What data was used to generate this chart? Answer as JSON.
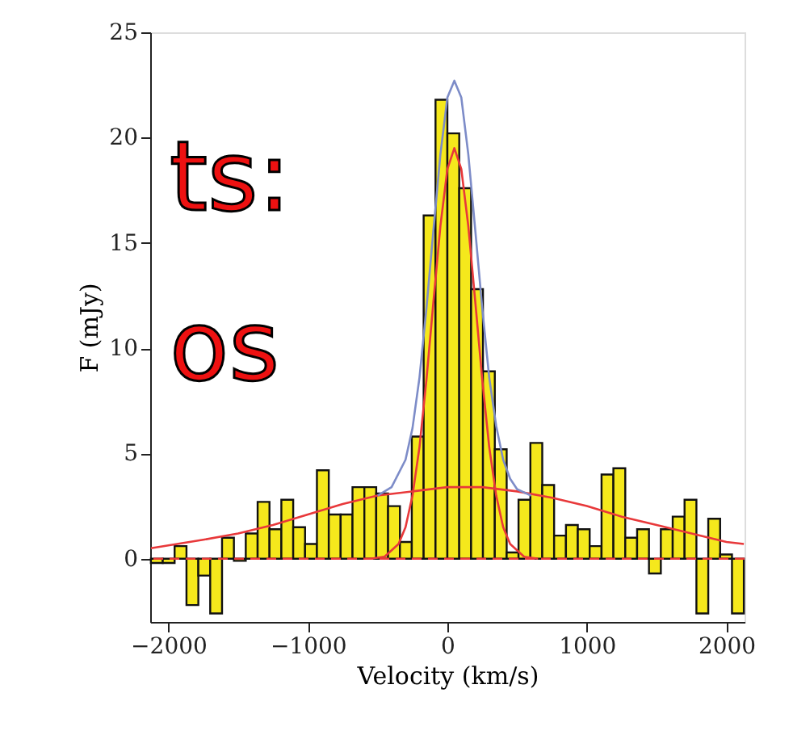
{
  "chart_data": {
    "type": "histogram",
    "xlabel": "Velocity (km/s)",
    "ylabel": "F (mJy)",
    "bins": [
      -2125,
      -2040,
      -1955,
      -1870,
      -1785,
      -1700,
      -1615,
      -1530,
      -1445,
      -1360,
      -1275,
      -1190,
      -1105,
      -1020,
      -935,
      -850,
      -765,
      -680,
      -595,
      -510,
      -425,
      -340,
      -255,
      -170,
      -85,
      0,
      85,
      170,
      255,
      340,
      425,
      510,
      595,
      680,
      765,
      850,
      935,
      1020,
      1105,
      1190,
      1275,
      1360,
      1445,
      1530,
      1615,
      1700,
      1785,
      1870,
      1955,
      2040,
      2125
    ],
    "values": [
      -0.2,
      -0.2,
      0.6,
      -2.2,
      -0.8,
      -2.6,
      1.0,
      -0.1,
      1.2,
      2.7,
      1.4,
      2.8,
      1.5,
      0.7,
      4.2,
      2.1,
      2.1,
      3.4,
      3.4,
      3.1,
      2.5,
      0.8,
      5.8,
      16.3,
      21.8,
      20.2,
      17.6,
      12.8,
      8.9,
      5.2,
      0.3,
      2.8,
      5.5,
      3.5,
      1.1,
      1.6,
      1.4,
      0.6,
      4.0,
      4.3,
      1.0,
      1.4,
      -0.7,
      1.4,
      2.0,
      2.8,
      -2.6,
      1.9,
      0.2,
      -2.6
    ],
    "color": "#f5e81c",
    "series": [
      {
        "type": "line",
        "color": "#e8383a",
        "x": [
          -2125,
          -1750,
          -1500,
          -1250,
          -1000,
          -750,
          -500,
          -250,
          0,
          100,
          250,
          500,
          750,
          1000,
          1250,
          1500,
          1750,
          2000,
          2125
        ],
        "values": [
          0.5,
          0.9,
          1.2,
          1.6,
          2.1,
          2.6,
          3.0,
          3.2,
          3.4,
          3.4,
          3.4,
          3.2,
          2.9,
          2.5,
          2.0,
          1.6,
          1.2,
          0.8,
          0.7
        ]
      },
      {
        "type": "line",
        "color": "#e8383a",
        "x": [
          -550,
          -450,
          -350,
          -300,
          -250,
          -200,
          -150,
          -100,
          -50,
          0,
          50,
          100,
          150,
          200,
          250,
          300,
          350,
          400,
          450,
          550,
          650
        ],
        "values": [
          0,
          0.1,
          0.7,
          1.5,
          3.0,
          5.3,
          8.5,
          12.2,
          15.8,
          18.5,
          19.5,
          18.5,
          15.8,
          12.2,
          8.5,
          5.3,
          3.0,
          1.5,
          0.7,
          0.1,
          0
        ]
      },
      {
        "type": "line",
        "color": "#7d8cc8",
        "x": [
          -500,
          -400,
          -300,
          -250,
          -200,
          -150,
          -100,
          -50,
          0,
          50,
          100,
          150,
          200,
          250,
          300,
          350,
          400,
          450,
          500,
          600
        ],
        "values": [
          3.0,
          3.4,
          4.7,
          6.2,
          8.6,
          11.9,
          15.6,
          19.2,
          21.9,
          22.7,
          21.9,
          19.2,
          15.6,
          11.9,
          8.6,
          6.3,
          4.7,
          3.8,
          3.3,
          3.0
        ]
      }
    ],
    "ref_lines": [
      {
        "axis": "y",
        "value": 0,
        "color": "#e8383a",
        "line_style": "dashed"
      }
    ],
    "xlim": [
      -2130,
      2130
    ],
    "ylim": [
      -3,
      25
    ],
    "xticks": [
      -2000,
      -1000,
      0,
      1000,
      2000
    ],
    "yticks": [
      0,
      5,
      10,
      15,
      20,
      25
    ],
    "annotations": [
      "ts:",
      "os"
    ],
    "grid": false
  }
}
